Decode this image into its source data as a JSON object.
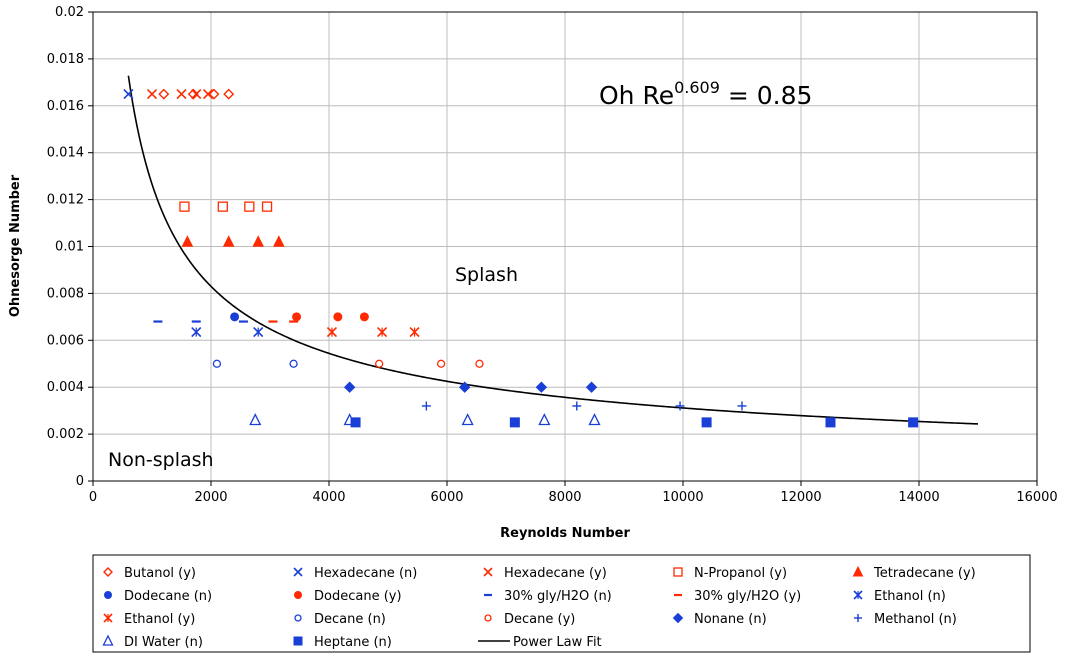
{
  "chart_data": {
    "type": "scatter",
    "xlabel": "Reynolds Number",
    "ylabel": "Ohnesorge Number",
    "xlim": [
      0,
      16000
    ],
    "ylim": [
      0,
      0.02
    ],
    "x_ticks": [
      "0",
      "2000",
      "4000",
      "6000",
      "8000",
      "10000",
      "12000",
      "14000",
      "16000"
    ],
    "y_ticks": [
      "0",
      "0.002",
      "0.004",
      "0.006",
      "0.008",
      "0.01",
      "0.012",
      "0.014",
      "0.016",
      "0.018",
      "0.02"
    ],
    "grid": true,
    "legend_position": "bottom",
    "annotations": {
      "equation_base": "Oh Re",
      "equation_exponent": "0.609",
      "equation_rhs": " = 0.85",
      "splash_label": "Splash",
      "nonsplash_label": "Non-splash"
    },
    "series": [
      {
        "name": "Butanol (y)",
        "marker": "diamond-open",
        "color": "#ff2a00",
        "points": [
          [
            1200,
            0.0165
          ],
          [
            1700,
            0.0165
          ],
          [
            2050,
            0.0165
          ],
          [
            2300,
            0.0165
          ]
        ]
      },
      {
        "name": "Hexadecane (n)",
        "marker": "x",
        "color": "#1a3fd6",
        "points": [
          [
            600,
            0.0165
          ]
        ]
      },
      {
        "name": "Hexadecane (y)",
        "marker": "x",
        "color": "#ff2a00",
        "points": [
          [
            1000,
            0.0165
          ],
          [
            1500,
            0.0165
          ],
          [
            1750,
            0.0165
          ],
          [
            1950,
            0.0165
          ]
        ]
      },
      {
        "name": "N-Propanol (y)",
        "marker": "square-open",
        "color": "#ff2a00",
        "points": [
          [
            1550,
            0.0117
          ],
          [
            2200,
            0.0117
          ],
          [
            2650,
            0.0117
          ],
          [
            2950,
            0.0117
          ]
        ]
      },
      {
        "name": "Tetradecane (y)",
        "marker": "triangle",
        "color": "#ff2a00",
        "points": [
          [
            1600,
            0.0102
          ],
          [
            2300,
            0.0102
          ],
          [
            2800,
            0.0102
          ],
          [
            3150,
            0.0102
          ]
        ]
      },
      {
        "name": "Dodecane (n)",
        "marker": "circle",
        "color": "#1a3fd6",
        "points": [
          [
            2400,
            0.007
          ]
        ]
      },
      {
        "name": "Dodecane (y)",
        "marker": "circle",
        "color": "#ff2a00",
        "points": [
          [
            3450,
            0.007
          ],
          [
            4150,
            0.007
          ],
          [
            4600,
            0.007
          ]
        ]
      },
      {
        "name": "30% gly/H2O (n)",
        "marker": "dash",
        "color": "#1a3fd6",
        "points": [
          [
            1100,
            0.0068
          ],
          [
            1750,
            0.0068
          ],
          [
            2550,
            0.0068
          ]
        ]
      },
      {
        "name": "30% gly/H2O (y)",
        "marker": "dash",
        "color": "#ff2a00",
        "points": [
          [
            3050,
            0.0068
          ],
          [
            3400,
            0.0068
          ]
        ]
      },
      {
        "name": "Ethanol (n)",
        "marker": "asterisk",
        "color": "#1a3fd6",
        "points": [
          [
            1750,
            0.00635
          ],
          [
            2800,
            0.00635
          ]
        ]
      },
      {
        "name": "Ethanol (y)",
        "marker": "asterisk",
        "color": "#ff2a00",
        "points": [
          [
            4050,
            0.00635
          ],
          [
            4900,
            0.00635
          ],
          [
            5450,
            0.00635
          ]
        ]
      },
      {
        "name": "Decane (n)",
        "marker": "circle-open",
        "color": "#1a3fd6",
        "points": [
          [
            2100,
            0.005
          ],
          [
            3400,
            0.005
          ]
        ]
      },
      {
        "name": "Decane (y)",
        "marker": "circle-open",
        "color": "#ff2a00",
        "points": [
          [
            4850,
            0.005
          ],
          [
            5900,
            0.005
          ],
          [
            6550,
            0.005
          ]
        ]
      },
      {
        "name": "Nonane (n)",
        "marker": "diamond",
        "color": "#1a3fd6",
        "points": [
          [
            4350,
            0.004
          ],
          [
            6300,
            0.004
          ],
          [
            7600,
            0.004
          ],
          [
            8450,
            0.004
          ]
        ]
      },
      {
        "name": "Methanol (n)",
        "marker": "plus",
        "color": "#1a3fd6",
        "points": [
          [
            5650,
            0.0032
          ],
          [
            8200,
            0.0032
          ],
          [
            9950,
            0.0032
          ],
          [
            11000,
            0.0032
          ]
        ]
      },
      {
        "name": "DI Water (n)",
        "marker": "triangle-open",
        "color": "#1a3fd6",
        "points": [
          [
            2750,
            0.0026
          ],
          [
            4350,
            0.0026
          ],
          [
            6350,
            0.0026
          ],
          [
            7650,
            0.0026
          ],
          [
            8500,
            0.0026
          ]
        ]
      },
      {
        "name": "Heptane (n)",
        "marker": "square",
        "color": "#1a3fd6",
        "points": [
          [
            4450,
            0.0025
          ],
          [
            7150,
            0.0025
          ],
          [
            10400,
            0.0025
          ],
          [
            12500,
            0.0025
          ],
          [
            13900,
            0.0025
          ]
        ]
      }
    ],
    "fit": {
      "name": "Power Law Fit",
      "coefficient": 0.85,
      "exponent": 0.609,
      "x_range": [
        600,
        15000
      ],
      "color": "#000000"
    }
  }
}
